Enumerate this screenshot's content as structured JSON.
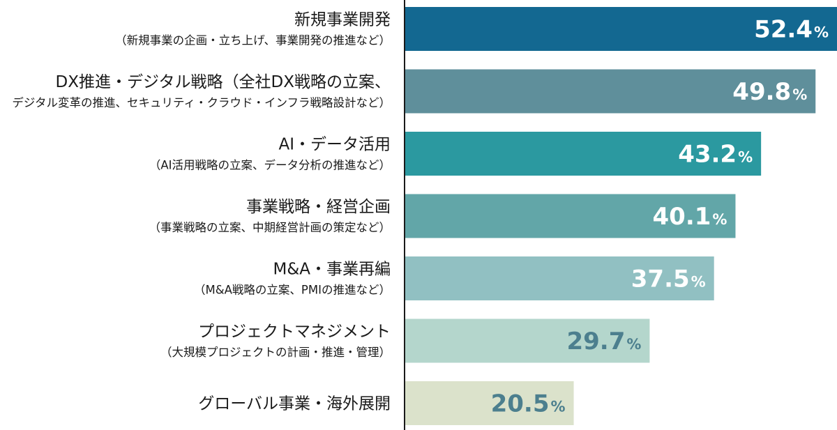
{
  "chart_data": {
    "type": "bar",
    "orientation": "horizontal",
    "unit": "%",
    "categories": [
      {
        "label_lines": [
          "新規事業開発",
          "（新規事業の企画・立ち上げ、事業開発の推進など）"
        ],
        "value": 52.4,
        "color": "#136891",
        "value_color": "#ffffff"
      },
      {
        "label_lines": [
          "DX推進・デジタル戦略（全社DX戦略の立案、",
          "デジタル変革の推進、セキュリティ・クラウド・インフラ戦略設計など）"
        ],
        "value": 49.8,
        "color": "#5f8f9b",
        "value_color": "#ffffff"
      },
      {
        "label_lines": [
          "AI・データ活用",
          "（AI活用戦略の立案、データ分析の推進など）"
        ],
        "value": 43.2,
        "color": "#2b99a0",
        "value_color": "#ffffff"
      },
      {
        "label_lines": [
          "事業戦略・経営企画",
          "（事業戦略の立案、中期経営計画の策定など）"
        ],
        "value": 40.1,
        "color": "#62a6a8",
        "value_color": "#ffffff"
      },
      {
        "label_lines": [
          "M&A・事業再編",
          "（M&A戦略の立案、PMIの推進など）"
        ],
        "value": 37.5,
        "color": "#91c0c2",
        "value_color": "#ffffff"
      },
      {
        "label_lines": [
          "プロジェクトマネジメント",
          "（大規模プロジェクトの計画・推進・管理）"
        ],
        "value": 29.7,
        "color": "#b4d6cc",
        "value_color": "#4c7f8e"
      },
      {
        "label_lines": [
          "グローバル事業・海外展開"
        ],
        "value": 20.5,
        "color": "#dbe2cb",
        "value_color": "#4c7f8e"
      }
    ],
    "xlim": [
      0,
      52.4
    ],
    "grid": false,
    "legend": "none",
    "axis_color": "#1a1a1a"
  }
}
